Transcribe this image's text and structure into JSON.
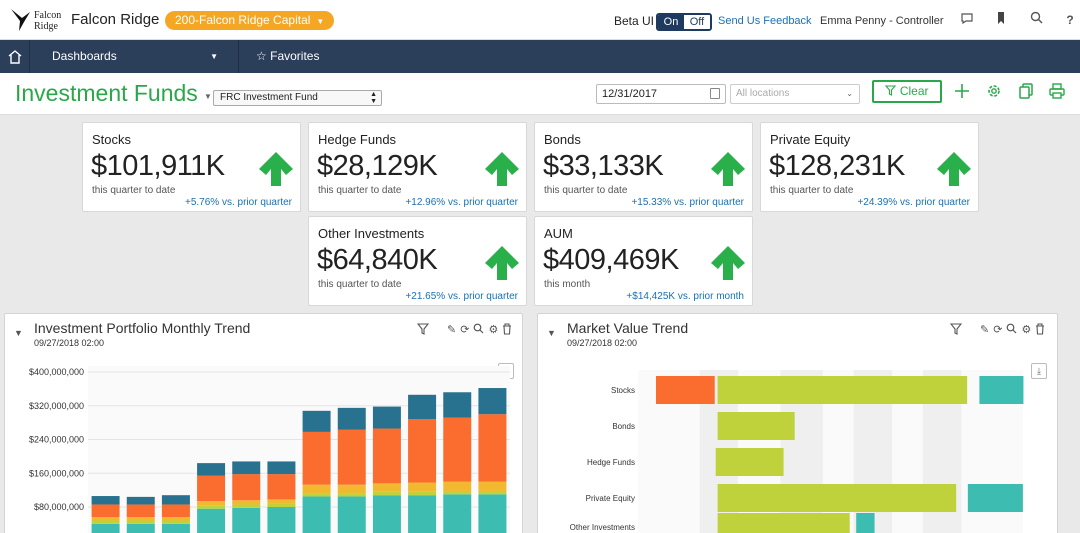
{
  "topbar": {
    "logo_text": "Falcon Ridge",
    "app_name": "Falcon Ridge",
    "entity": "200-Falcon Ridge Capital",
    "beta_label": "Beta UI",
    "toggle_on": "On",
    "toggle_off": "Off",
    "feedback": "Send Us Feedback",
    "user": "Emma Penny - Controller",
    "icons": [
      "chat-icon",
      "bookmark-icon",
      "search-icon",
      "help-icon"
    ],
    "help_glyph": "?"
  },
  "nav": {
    "dashboards": "Dashboards",
    "favorites": "Favorites"
  },
  "header": {
    "title": "Investment Funds",
    "fund": "FRC Investment Fund",
    "date": "12/31/2017",
    "locations_placeholder": "All locations",
    "clear": "Clear"
  },
  "cards": [
    {
      "name": "Stocks",
      "value": "$101,911K",
      "period": "this quarter to date",
      "delta": "+5.76% vs. prior quarter"
    },
    {
      "name": "Hedge Funds",
      "value": "$28,129K",
      "period": "this quarter to date",
      "delta": "+12.96% vs. prior quarter"
    },
    {
      "name": "Bonds",
      "value": "$33,133K",
      "period": "this quarter to date",
      "delta": "+15.33% vs. prior quarter"
    },
    {
      "name": "Private Equity",
      "value": "$128,231K",
      "period": "this quarter to date",
      "delta": "+24.39% vs. prior quarter"
    },
    {
      "name": "Other Investments",
      "value": "$64,840K",
      "period": "this quarter to date",
      "delta": "+21.65% vs. prior quarter"
    },
    {
      "name": "AUM",
      "value": "$409,469K",
      "period": "this month",
      "delta": "+$14,425K vs. prior month"
    }
  ],
  "colors": {
    "green": "#29a84a",
    "navy": "#2b3e5a",
    "orange_pill": "#f5a623",
    "link": "#1a6fb5",
    "seg_teal": "#3dbdb1",
    "seg_olive": "#bfd23c",
    "seg_yellow": "#f2b830",
    "seg_orange": "#fb6c2f",
    "seg_navy": "#28728f"
  },
  "panel_left": {
    "title": "Investment Portfolio Monthly Trend",
    "date": "09/27/2018 02:00"
  },
  "panel_right": {
    "title": "Market Value Trend",
    "date": "09/27/2018 02:00"
  },
  "chart_data": [
    {
      "type": "bar",
      "stacked": true,
      "y_ticks": [
        "$400,000,000",
        "$320,000,000",
        "$240,000,000",
        "$160,000,000",
        "$80,000,000"
      ],
      "ylim": [
        0,
        400000000
      ],
      "visible_ylim": [
        40000000,
        400000000
      ],
      "segment_colors": [
        "#3dbdb1",
        "#bfd23c",
        "#f2b830",
        "#fb6c2f",
        "#28728f"
      ],
      "values": [
        [
          40000000,
          8000000,
          8000000,
          30000000,
          20000000
        ],
        [
          40000000,
          8000000,
          8000000,
          30000000,
          18000000
        ],
        [
          40000000,
          8000000,
          8000000,
          30000000,
          22000000
        ],
        [
          76000000,
          8000000,
          10000000,
          60000000,
          30000000
        ],
        [
          78000000,
          8000000,
          10000000,
          62000000,
          30000000
        ],
        [
          80000000,
          8000000,
          10000000,
          60000000,
          30000000
        ],
        [
          105000000,
          8000000,
          20000000,
          125000000,
          50000000
        ],
        [
          105000000,
          8000000,
          20000000,
          130000000,
          52000000
        ],
        [
          108000000,
          8000000,
          20000000,
          130000000,
          52000000
        ],
        [
          108000000,
          8000000,
          22000000,
          150000000,
          58000000
        ],
        [
          110000000,
          8000000,
          22000000,
          152000000,
          60000000
        ],
        [
          110000000,
          8000000,
          22000000,
          160000000,
          62000000
        ]
      ]
    },
    {
      "type": "bar",
      "orientation": "horizontal",
      "stacked": true,
      "categories": [
        "Stocks",
        "Bonds",
        "Hedge Funds",
        "Private Equity",
        "Other Investments"
      ],
      "values": [
        [
          {
            "start": 0.0,
            "end": 0.16,
            "color": "#fb6c2f"
          },
          {
            "start": 0.16,
            "end": 0.84,
            "color": "#bfd23c"
          },
          {
            "start": 0.84,
            "end": 0.96,
            "color": "#3dbdb1"
          }
        ],
        [
          {
            "start": 0.16,
            "end": 0.37,
            "color": "#bfd23c"
          }
        ],
        [
          {
            "start": 0.155,
            "end": 0.34,
            "color": "#bfd23c"
          }
        ],
        [
          {
            "start": 0.16,
            "end": 0.81,
            "color": "#bfd23c"
          },
          {
            "start": 0.81,
            "end": 0.96,
            "color": "#3dbdb1"
          }
        ],
        [
          {
            "start": 0.16,
            "end": 0.52,
            "color": "#bfd23c"
          },
          {
            "start": 0.52,
            "end": 0.57,
            "color": "#3dbdb1"
          }
        ]
      ]
    }
  ]
}
